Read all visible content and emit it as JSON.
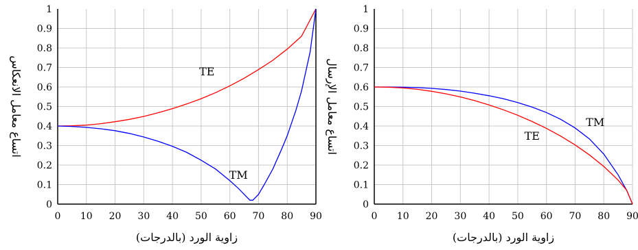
{
  "chart_data": [
    {
      "type": "line",
      "ylabel": "اتساع معامل الانعكاس",
      "xlabel": "زاوية الورد (بالدرجات)",
      "xlim": [
        0,
        90
      ],
      "ylim": [
        0,
        1
      ],
      "x_ticks": [
        "0",
        "10",
        "20",
        "30",
        "40",
        "50",
        "60",
        "70",
        "80",
        "90"
      ],
      "y_ticks": [
        "0",
        "0.1",
        "0.2",
        "0.3",
        "0.4",
        "0.5",
        "0.6",
        "0.7",
        "0.8",
        "0.9",
        "1"
      ],
      "grid": true,
      "series": [
        {
          "name": "TE",
          "color": "#ff0000",
          "x": [
            0,
            5,
            10,
            15,
            20,
            25,
            30,
            35,
            40,
            45,
            50,
            55,
            60,
            65,
            70,
            75,
            80,
            85,
            90
          ],
          "y": [
            0.4,
            0.401,
            0.405,
            0.412,
            0.422,
            0.434,
            0.449,
            0.468,
            0.489,
            0.513,
            0.54,
            0.571,
            0.606,
            0.645,
            0.689,
            0.737,
            0.794,
            0.86,
            1.0
          ]
        },
        {
          "name": "TM",
          "color": "#0000ff",
          "x": [
            0,
            5,
            10,
            15,
            20,
            25,
            30,
            35,
            40,
            45,
            50,
            55,
            60,
            63,
            65,
            67,
            68,
            70,
            72,
            75,
            78,
            80,
            83,
            85,
            88,
            90
          ],
          "y": [
            0.4,
            0.398,
            0.393,
            0.386,
            0.376,
            0.362,
            0.344,
            0.322,
            0.296,
            0.265,
            0.225,
            0.18,
            0.12,
            0.08,
            0.05,
            0.02,
            0.02,
            0.05,
            0.1,
            0.18,
            0.28,
            0.35,
            0.48,
            0.58,
            0.78,
            1.0
          ]
        }
      ],
      "annotations": [
        {
          "text": "TE",
          "x": 52,
          "y": 0.66
        },
        {
          "text": "TM",
          "x": 63,
          "y": 0.13
        }
      ]
    },
    {
      "type": "line",
      "ylabel": "اتساع معامل الإرسال",
      "xlabel": "زاوية الورد (بالدرجات)",
      "xlim": [
        0,
        90
      ],
      "ylim": [
        0,
        1
      ],
      "x_ticks": [
        "0",
        "10",
        "20",
        "30",
        "40",
        "50",
        "60",
        "70",
        "80",
        "90"
      ],
      "y_ticks": [
        "0",
        "0.1",
        "0.2",
        "0.3",
        "0.4",
        "0.5",
        "0.6",
        "0.7",
        "0.8",
        "0.9",
        "1"
      ],
      "grid": true,
      "series": [
        {
          "name": "TM",
          "color": "#0000ff",
          "x": [
            0,
            5,
            10,
            15,
            20,
            25,
            30,
            35,
            40,
            45,
            50,
            55,
            60,
            65,
            70,
            75,
            80,
            85,
            88,
            90
          ],
          "y": [
            0.6,
            0.6,
            0.599,
            0.597,
            0.593,
            0.587,
            0.579,
            0.568,
            0.555,
            0.54,
            0.52,
            0.497,
            0.469,
            0.434,
            0.39,
            0.334,
            0.256,
            0.15,
            0.07,
            0.0
          ]
        },
        {
          "name": "TE",
          "color": "#ff0000",
          "x": [
            0,
            5,
            10,
            15,
            20,
            25,
            30,
            35,
            40,
            45,
            50,
            55,
            60,
            65,
            70,
            75,
            80,
            85,
            88,
            90
          ],
          "y": [
            0.6,
            0.599,
            0.595,
            0.588,
            0.578,
            0.565,
            0.549,
            0.53,
            0.508,
            0.483,
            0.455,
            0.423,
            0.388,
            0.348,
            0.303,
            0.252,
            0.193,
            0.123,
            0.071,
            0.0
          ]
        }
      ],
      "annotations": [
        {
          "text": "TM",
          "x": 77,
          "y": 0.4
        },
        {
          "text": "TE",
          "x": 55,
          "y": 0.33
        }
      ]
    }
  ]
}
